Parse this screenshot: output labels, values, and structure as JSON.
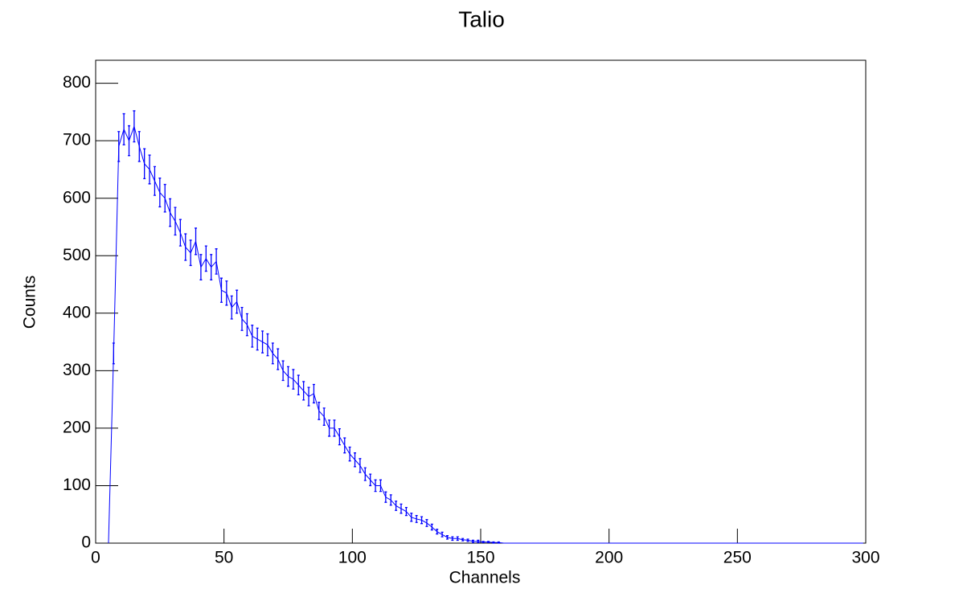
{
  "chart_data": {
    "type": "line",
    "title": "Talio",
    "x_label": "Channels",
    "y_label": "Counts",
    "x": [
      5,
      7,
      9,
      11,
      13,
      15,
      17,
      19,
      21,
      23,
      25,
      27,
      29,
      31,
      33,
      35,
      37,
      39,
      41,
      43,
      45,
      47,
      49,
      51,
      53,
      55,
      57,
      59,
      61,
      63,
      65,
      67,
      69,
      71,
      73,
      75,
      77,
      79,
      81,
      83,
      85,
      87,
      89,
      91,
      93,
      95,
      97,
      99,
      101,
      103,
      105,
      107,
      109,
      111,
      113,
      115,
      117,
      119,
      121,
      123,
      125,
      127,
      129,
      131,
      133,
      135,
      137,
      139,
      141,
      143,
      145,
      147,
      149,
      151,
      153,
      155,
      157,
      159,
      161,
      299
    ],
    "series": [
      {
        "color": "#0000ff",
        "values": [
          0,
          330,
          690,
          720,
          700,
          725,
          690,
          660,
          650,
          630,
          610,
          600,
          575,
          560,
          540,
          515,
          505,
          525,
          480,
          495,
          480,
          490,
          440,
          435,
          410,
          420,
          390,
          380,
          360,
          355,
          350,
          345,
          330,
          320,
          300,
          290,
          285,
          275,
          265,
          255,
          260,
          230,
          220,
          200,
          200,
          185,
          170,
          155,
          145,
          135,
          120,
          110,
          100,
          100,
          80,
          75,
          65,
          60,
          55,
          45,
          42,
          40,
          35,
          28,
          20,
          15,
          10,
          8,
          8,
          6,
          5,
          3,
          3,
          2,
          2,
          1,
          1,
          0,
          0,
          0
        ],
        "errors": [
          0,
          18,
          26,
          27,
          26,
          27,
          26,
          26,
          25,
          25,
          25,
          24,
          24,
          24,
          23,
          23,
          22,
          23,
          22,
          22,
          22,
          22,
          21,
          21,
          20,
          20,
          20,
          19,
          19,
          19,
          19,
          19,
          18,
          18,
          17,
          17,
          17,
          17,
          16,
          16,
          16,
          15,
          15,
          14,
          14,
          14,
          13,
          12,
          12,
          12,
          11,
          10,
          10,
          10,
          9,
          9,
          8,
          8,
          7,
          7,
          6,
          6,
          6,
          5,
          4,
          4,
          3,
          3,
          3,
          2,
          2,
          2,
          2,
          1,
          1,
          1,
          1,
          0,
          0,
          0
        ]
      }
    ],
    "xlim": [
      0,
      300
    ],
    "xticks": [
      0,
      50,
      100,
      150,
      200,
      250,
      300
    ],
    "ylim": [
      0,
      840
    ],
    "yticks": [
      0,
      100,
      200,
      300,
      400,
      500,
      600,
      700,
      800
    ]
  }
}
